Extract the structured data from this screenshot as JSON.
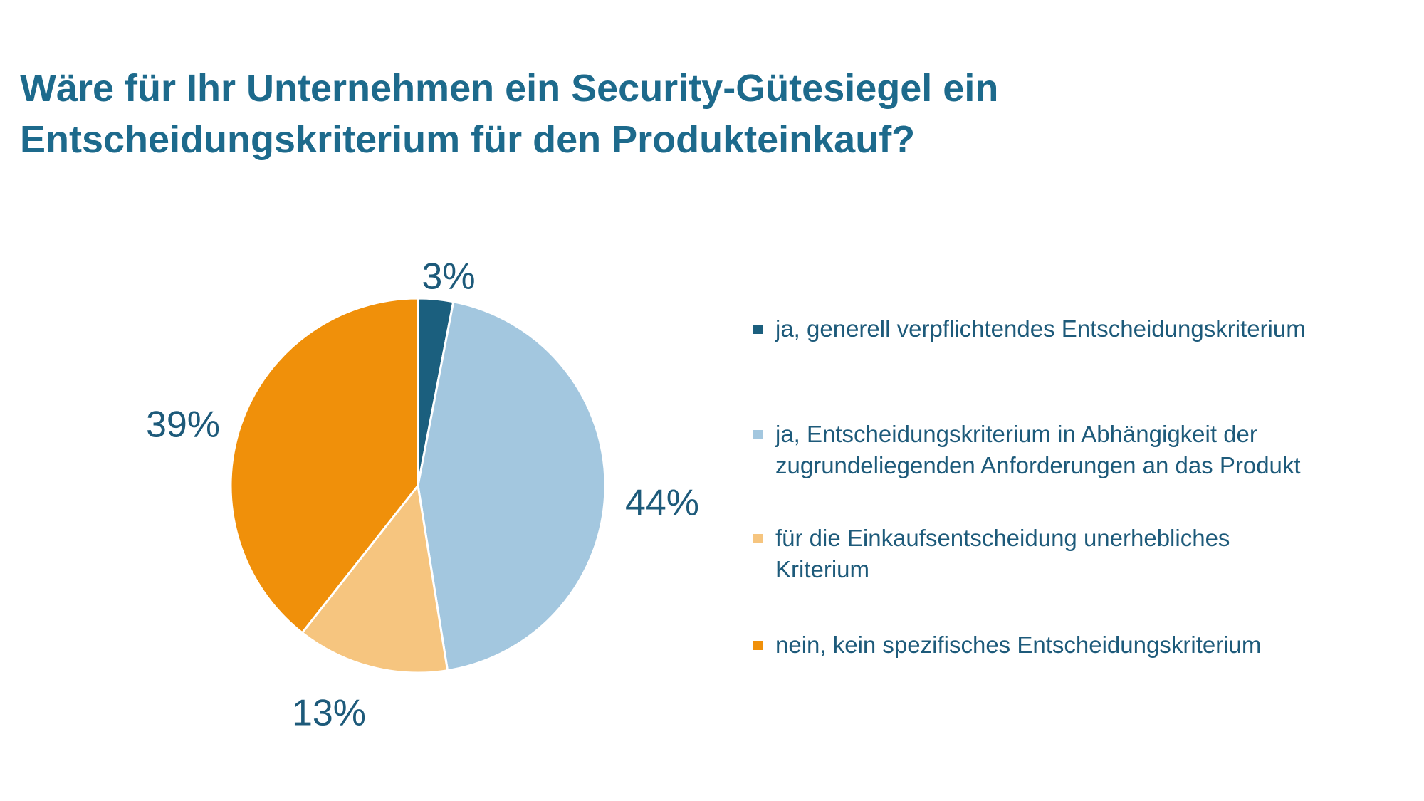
{
  "title": {
    "line1": "Wäre für Ihr Unternehmen ein Security-Gütesiegel ein",
    "line2": "Entscheidungskriterium für den Produkteinkauf?"
  },
  "chart_data": {
    "type": "pie",
    "title": "Wäre für Ihr Unternehmen ein Security-Gütesiegel ein Entscheidungskriterium für den Produkteinkauf?",
    "unit": "%",
    "legend_position": "right",
    "slices": [
      {
        "label": "ja, generell verpflichtendes Entscheidungskriterium",
        "value": 3,
        "display": "3%",
        "color": "#1b5f7e"
      },
      {
        "label": "ja, Entscheidungskriterium in Abhängigkeit der zugrundeliegenden Anforderungen an das Produkt",
        "value": 44,
        "display": "44%",
        "color": "#a3c7df"
      },
      {
        "label": "für die Einkaufsentscheidung unerhebliches Kriterium",
        "value": 13,
        "display": "13%",
        "color": "#f6c57f"
      },
      {
        "label": "nein, kein spezifisches Entscheidungskriterium",
        "value": 39,
        "display": "39%",
        "color": "#f0900a"
      }
    ]
  },
  "legend": [
    {
      "lines": [
        "ja, generell verpflichtendes Entscheidungskriterium"
      ]
    },
    {
      "lines": [
        "ja, Entscheidungskriterium in Abhängigkeit der",
        "zugrundeliegenden Anforderungen an das Produkt"
      ]
    },
    {
      "lines": [
        "für die Einkaufsentscheidung unerhebliches",
        "Kriterium"
      ]
    },
    {
      "lines": [
        "nein, kein spezifisches Entscheidungskriterium"
      ]
    }
  ]
}
